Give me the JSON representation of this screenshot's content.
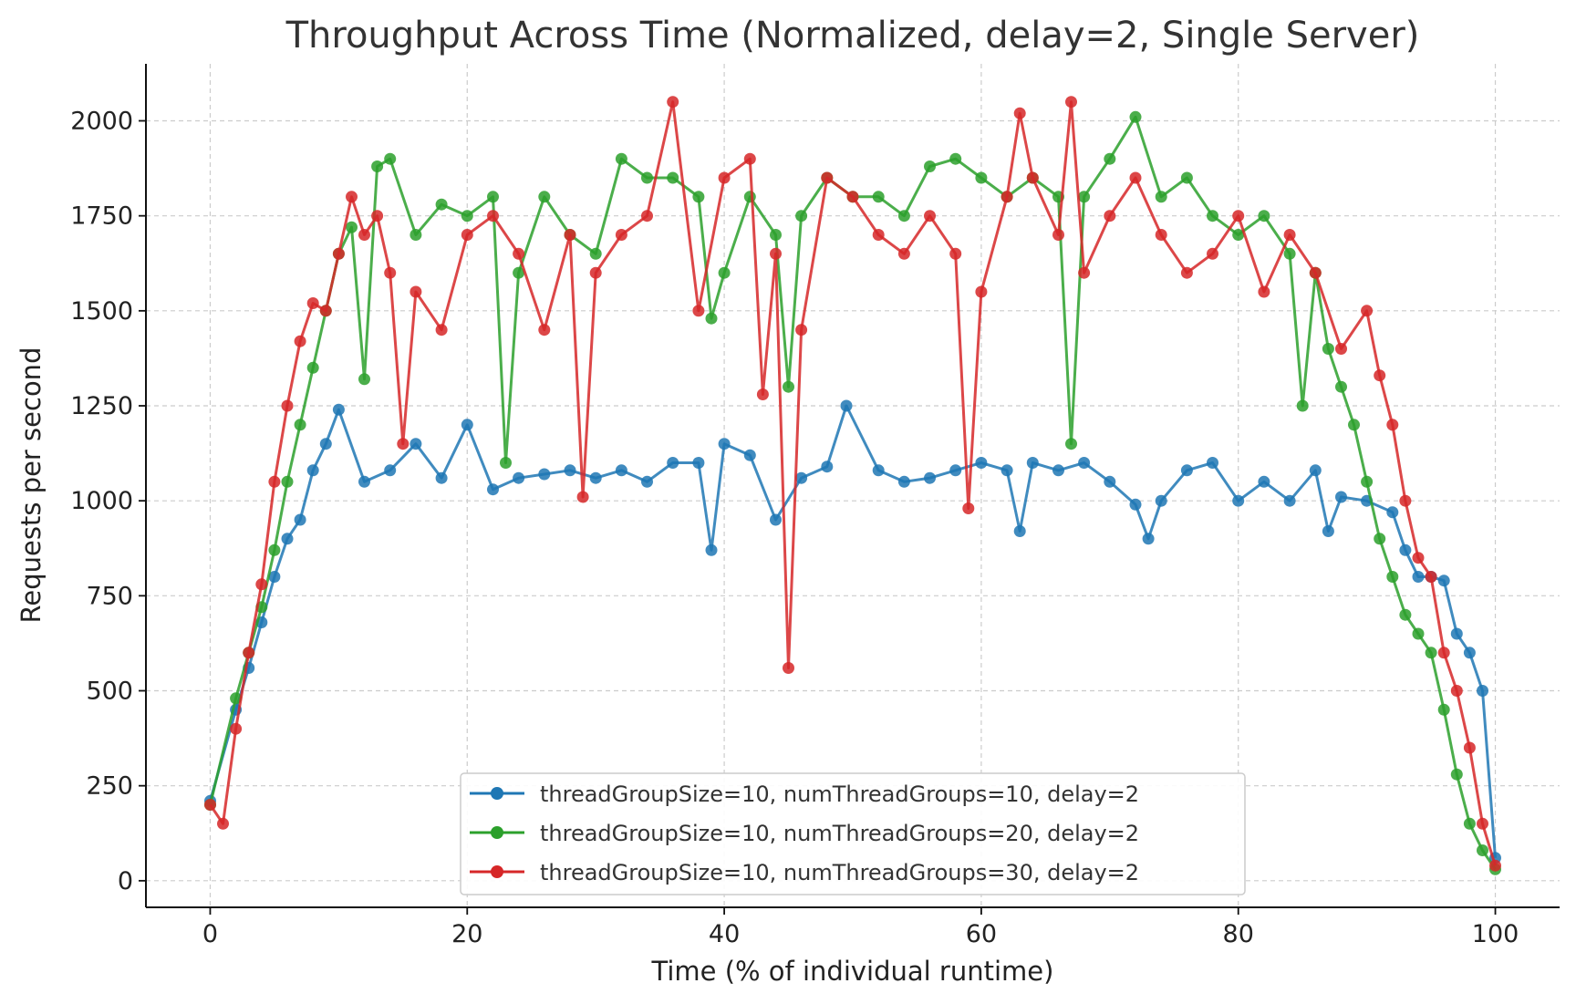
{
  "chart_data": {
    "type": "line",
    "title": "Throughput Across Time (Normalized, delay=2, Single Server)",
    "xlabel": "Time (% of individual runtime)",
    "ylabel": "Requests per second",
    "xlim": [
      -5,
      105
    ],
    "ylim": [
      -70,
      2150
    ],
    "xticks": [
      0,
      20,
      40,
      60,
      80,
      100
    ],
    "yticks": [
      0,
      250,
      500,
      750,
      1000,
      1250,
      1500,
      1750,
      2000
    ],
    "xtick_labels": [
      "0",
      "20",
      "40",
      "60",
      "80",
      "100"
    ],
    "ytick_labels": [
      "0",
      "250",
      "500",
      "750",
      "1000",
      "1250",
      "1500",
      "1750",
      "2000"
    ],
    "grid": true,
    "legend_position": "bottom-center",
    "series": [
      {
        "name": "threadGroupSize=10, numThreadGroups=10, delay=2",
        "color": "#1f77b4",
        "x": [
          0,
          2,
          3,
          4,
          5,
          6,
          7,
          8,
          9,
          10,
          12,
          14,
          16,
          18,
          20,
          22,
          24,
          26,
          28,
          30,
          32,
          34,
          36,
          38,
          39,
          40,
          42,
          44,
          46,
          48,
          49.5,
          52,
          54,
          56,
          58,
          60,
          62,
          63,
          64,
          66,
          68,
          70,
          72,
          73,
          74,
          76,
          78,
          80,
          82,
          84,
          86,
          87,
          88,
          90,
          92,
          93,
          94,
          95,
          96,
          97,
          98,
          99,
          100
        ],
        "y": [
          210,
          450,
          560,
          680,
          800,
          900,
          950,
          1080,
          1150,
          1240,
          1050,
          1080,
          1150,
          1060,
          1200,
          1030,
          1060,
          1070,
          1080,
          1060,
          1080,
          1050,
          1100,
          1100,
          870,
          1150,
          1120,
          950,
          1060,
          1090,
          1250,
          1080,
          1050,
          1060,
          1080,
          1100,
          1080,
          920,
          1100,
          1080,
          1100,
          1050,
          990,
          900,
          1000,
          1080,
          1100,
          1000,
          1050,
          1000,
          1080,
          920,
          1010,
          1000,
          970,
          870,
          800,
          800,
          790,
          650,
          600,
          500,
          60
        ]
      },
      {
        "name": "threadGroupSize=10, numThreadGroups=20, delay=2",
        "color": "#2ca02c",
        "x": [
          0,
          2,
          3,
          4,
          5,
          6,
          7,
          8,
          9,
          10,
          11,
          12,
          13,
          14,
          16,
          18,
          20,
          22,
          23,
          24,
          26,
          28,
          30,
          32,
          34,
          36,
          38,
          39,
          40,
          42,
          44,
          45,
          46,
          48,
          50,
          52,
          54,
          56,
          58,
          60,
          62,
          64,
          66,
          67,
          68,
          70,
          72,
          74,
          76,
          78,
          80,
          82,
          84,
          85,
          86,
          87,
          88,
          89,
          90,
          91,
          92,
          93,
          94,
          95,
          96,
          97,
          98,
          99,
          100
        ],
        "y": [
          200,
          480,
          600,
          720,
          870,
          1050,
          1200,
          1350,
          1500,
          1650,
          1720,
          1320,
          1880,
          1900,
          1700,
          1780,
          1750,
          1800,
          1100,
          1600,
          1800,
          1700,
          1650,
          1900,
          1850,
          1850,
          1800,
          1480,
          1600,
          1800,
          1700,
          1300,
          1750,
          1850,
          1800,
          1800,
          1750,
          1880,
          1900,
          1850,
          1800,
          1850,
          1800,
          1150,
          1800,
          1900,
          2010,
          1800,
          1850,
          1750,
          1700,
          1750,
          1650,
          1250,
          1600,
          1400,
          1300,
          1200,
          1050,
          900,
          800,
          700,
          650,
          600,
          450,
          280,
          150,
          80,
          30
        ]
      },
      {
        "name": "threadGroupSize=10, numThreadGroups=30, delay=2",
        "color": "#d62728",
        "x": [
          0,
          1,
          2,
          3,
          4,
          5,
          6,
          7,
          8,
          9,
          10,
          11,
          12,
          13,
          14,
          15,
          16,
          18,
          20,
          22,
          24,
          26,
          28,
          29,
          30,
          32,
          34,
          36,
          38,
          40,
          42,
          43,
          44,
          45,
          46,
          48,
          50,
          52,
          54,
          56,
          58,
          59,
          60,
          62,
          63,
          64,
          66,
          67,
          68,
          70,
          72,
          74,
          76,
          78,
          80,
          82,
          84,
          86,
          88,
          90,
          91,
          92,
          93,
          94,
          95,
          96,
          97,
          98,
          99,
          100
        ],
        "y": [
          200,
          150,
          400,
          600,
          780,
          1050,
          1250,
          1420,
          1520,
          1500,
          1650,
          1800,
          1700,
          1750,
          1600,
          1150,
          1550,
          1450,
          1700,
          1750,
          1650,
          1450,
          1700,
          1010,
          1600,
          1700,
          1750,
          2050,
          1500,
          1850,
          1900,
          1280,
          1650,
          560,
          1450,
          1850,
          1800,
          1700,
          1650,
          1750,
          1650,
          980,
          1550,
          1800,
          2020,
          1850,
          1700,
          2050,
          1600,
          1750,
          1850,
          1700,
          1600,
          1650,
          1750,
          1550,
          1700,
          1600,
          1400,
          1500,
          1330,
          1200,
          1000,
          850,
          800,
          600,
          500,
          350,
          150,
          40
        ]
      }
    ]
  }
}
